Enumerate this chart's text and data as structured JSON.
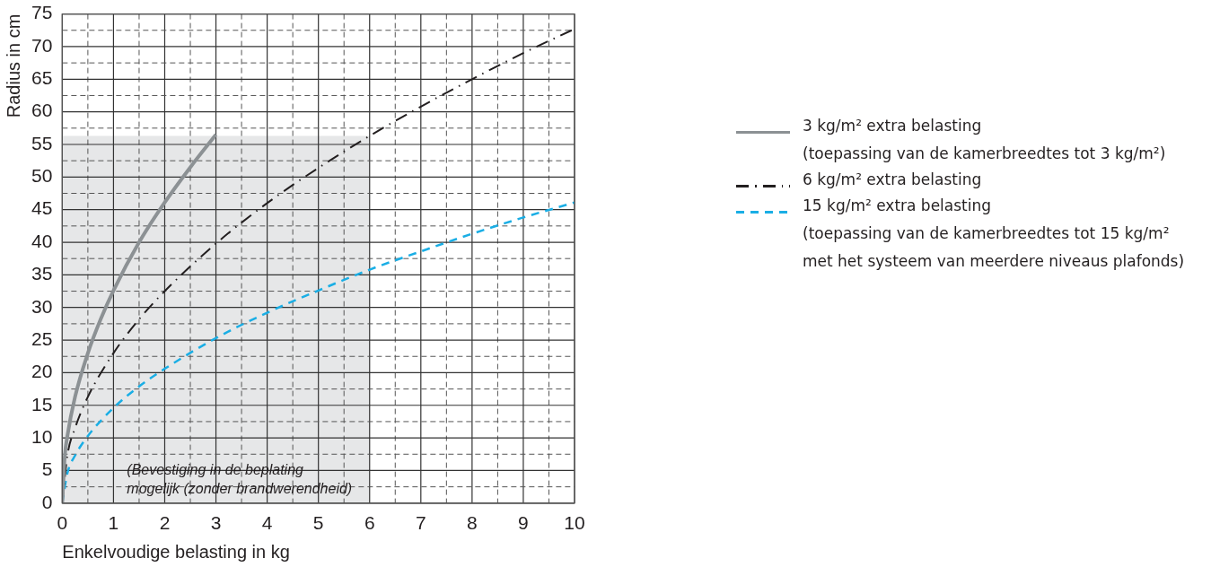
{
  "chart_data": {
    "type": "line",
    "xlabel": "Enkelvoudige belasting in kg",
    "ylabel": "Radius in cm",
    "xlim": [
      0,
      10
    ],
    "ylim": [
      0,
      75
    ],
    "xticks": [
      0,
      {
        "value": 0.5,
        "label": null
      },
      1,
      {
        "value": 1.5,
        "label": null
      },
      2,
      {
        "value": 2.5,
        "label": null
      },
      3,
      {
        "value": 3.5,
        "label": null
      },
      4,
      {
        "value": 4.5,
        "label": null
      },
      5,
      {
        "value": 5.5,
        "label": null
      },
      6,
      {
        "value": 6.5,
        "label": null
      },
      7,
      {
        "value": 7.5,
        "label": null
      },
      8,
      {
        "value": 8.5,
        "label": null
      },
      9,
      {
        "value": 9.5,
        "label": null
      },
      10
    ],
    "yticks": [
      0,
      {
        "value": 2.5,
        "label": null
      },
      5,
      {
        "value": 7.5,
        "label": null
      },
      10,
      {
        "value": 12.5,
        "label": null
      },
      15,
      {
        "value": 17.5,
        "label": null
      },
      20,
      {
        "value": 22.5,
        "label": null
      },
      25,
      {
        "value": 27.5,
        "label": null
      },
      30,
      {
        "value": 32.5,
        "label": null
      },
      35,
      {
        "value": 37.5,
        "label": null
      },
      40,
      {
        "value": 42.5,
        "label": null
      },
      45,
      {
        "value": 47.5,
        "label": null
      },
      50,
      {
        "value": 52.5,
        "label": null
      },
      55,
      {
        "value": 57.5,
        "label": null
      },
      60,
      {
        "value": 62.5,
        "label": null
      },
      65,
      {
        "value": 67.5,
        "label": null
      },
      70,
      {
        "value": 72.5,
        "label": null
      },
      75
    ],
    "grid": true,
    "legend": "right",
    "marker": "none",
    "annotations": [
      "(Bevestiging in de beplating\nmogelijk (zonder brandwerendheid)"
    ],
    "series": [
      {
        "type": "area",
        "color": "#e6e7e8",
        "x": [
          0,
          6
        ],
        "values": [
          56.3,
          56.3
        ]
      },
      {
        "name": "3 kg/m² extra belasting\n(toepassing van de kamerbreedtes tot 3 kg/m²)",
        "color": "#8c9194",
        "line_style": "solid",
        "x": [
          0,
          0.05,
          0.1,
          0.25,
          0.5,
          0.75,
          1,
          1.5,
          2,
          2.5,
          3
        ],
        "values": [
          0,
          7.3,
          10.3,
          16.3,
          23,
          28.2,
          32.6,
          40,
          46.1,
          51.5,
          56.5
        ]
      },
      {
        "name": "6 kg/m² extra belasting",
        "color": "#231f20",
        "line_style": "dashdot",
        "x": [
          0,
          0.1,
          0.25,
          0.5,
          1,
          1.5,
          2,
          3,
          4,
          5,
          6,
          7,
          8,
          9,
          10
        ],
        "values": [
          0,
          7.3,
          11.5,
          16.3,
          23,
          28.2,
          32.5,
          39.8,
          46,
          51.4,
          56.3,
          60.8,
          65,
          69,
          72.7
        ]
      },
      {
        "name": "15 kg/m² extra belasting\n(toepassing van de kamerbreedtes tot 15 kg/m²\nmet het systeem van meerdere niveaus plafonds)",
        "color": "#1aaee5",
        "line_style": "dashed",
        "x": [
          0,
          0.1,
          0.25,
          0.5,
          1,
          1.5,
          2,
          3,
          4,
          5,
          6,
          7,
          8,
          9,
          10
        ],
        "values": [
          0,
          4.6,
          7.3,
          10.3,
          14.6,
          17.9,
          20.6,
          25.3,
          29.2,
          32.6,
          35.8,
          38.6,
          41.3,
          43.8,
          46.1
        ]
      }
    ]
  }
}
